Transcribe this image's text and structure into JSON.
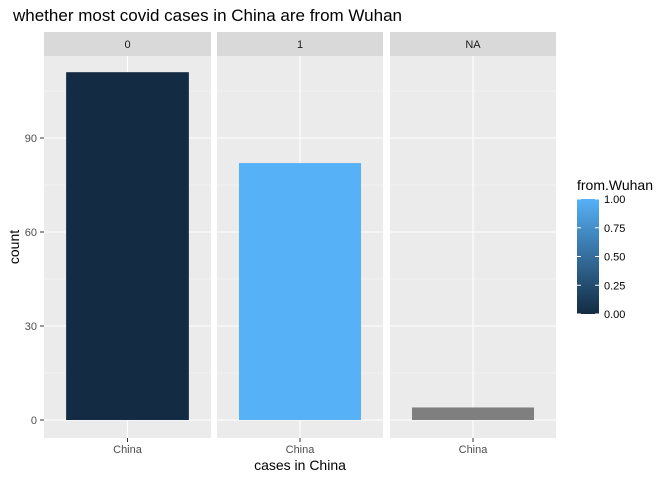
{
  "chart_data": {
    "type": "bar",
    "title": "whether most covid cases in China are from Wuhan",
    "xlabel": "cases in China",
    "ylabel": "count",
    "ylim": [
      0,
      115
    ],
    "yticks": [
      0,
      30,
      60,
      90
    ],
    "ytick_labels": [
      "0",
      "30",
      "60",
      "90"
    ],
    "grid": true,
    "facets": [
      {
        "label": "0",
        "category": "China",
        "value": 111,
        "fill_value": 0
      },
      {
        "label": "1",
        "category": "China",
        "value": 82,
        "fill_value": 1
      },
      {
        "label": "NA",
        "category": "China",
        "value": 4,
        "fill_value": null
      }
    ],
    "legend": {
      "title": "from.Wuhan",
      "placement": "right",
      "breaks": [
        0,
        0.25,
        0.5,
        0.75,
        1
      ],
      "labels": [
        "0.00",
        "0.25",
        "0.50",
        "0.75",
        "1.00"
      ],
      "low_color": "#132B43",
      "high_color": "#56B1F7",
      "na_color": "#7F7F7F"
    },
    "colors": {
      "panel_bg": "#EBEBEB",
      "strip_bg": "#D9D9D9",
      "grid_major": "#FFFFFF"
    }
  }
}
